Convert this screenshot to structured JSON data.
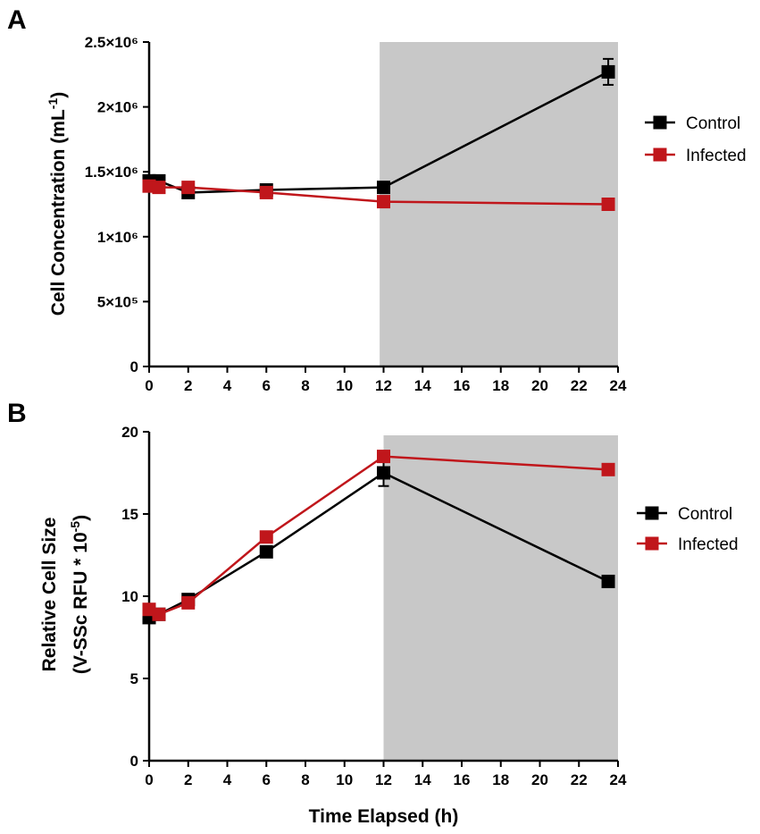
{
  "chart_data": [
    {
      "type": "line",
      "panel_label": "A",
      "ylabel": "Cell Concentration (mL",
      "ylabel_sup": "-1",
      "ylabel_tail": ")",
      "xlabel": "",
      "xlim": [
        0,
        24
      ],
      "ylim": [
        0,
        2500000
      ],
      "x_ticks": [
        0,
        2,
        4,
        6,
        8,
        10,
        12,
        14,
        16,
        18,
        20,
        22,
        24
      ],
      "x_tick_labels": [
        "0",
        "2",
        "4",
        "6",
        "8",
        "10",
        "12",
        "14",
        "16",
        "18",
        "20",
        "22",
        "24"
      ],
      "y_ticks": [
        0,
        500000,
        1000000,
        1500000,
        2000000,
        2500000
      ],
      "y_tick_labels": [
        "0",
        "5×10⁵",
        "1×10⁶",
        "1.5×10⁶",
        "2×10⁶",
        "2.5×10⁶"
      ],
      "shaded_region": [
        11.8,
        24
      ],
      "series": [
        {
          "name": "Control",
          "color": "#000000",
          "x": [
            0,
            0.5,
            2,
            6,
            12,
            23.5
          ],
          "y": [
            1430000,
            1430000,
            1340000,
            1360000,
            1380000,
            2270000
          ],
          "err": [
            0,
            0,
            0,
            0,
            0,
            100000
          ]
        },
        {
          "name": "Infected",
          "color": "#c0161b",
          "x": [
            0,
            0.5,
            2,
            6,
            12,
            23.5
          ],
          "y": [
            1390000,
            1380000,
            1380000,
            1340000,
            1270000,
            1250000
          ],
          "err": [
            0,
            0,
            0,
            0,
            0,
            0
          ]
        }
      ]
    },
    {
      "type": "line",
      "panel_label": "B",
      "ylabel": "Relative Cell Size",
      "ylabel2": "(V-SSc RFU * 10",
      "ylabel2_sup": "-5",
      "ylabel2_tail": ")",
      "xlabel": "Time Elapsed (h)",
      "xlim": [
        0,
        24
      ],
      "ylim": [
        0,
        20
      ],
      "x_ticks": [
        0,
        2,
        4,
        6,
        8,
        10,
        12,
        14,
        16,
        18,
        20,
        22,
        24
      ],
      "x_tick_labels": [
        "0",
        "2",
        "4",
        "6",
        "8",
        "10",
        "12",
        "14",
        "16",
        "18",
        "20",
        "22",
        "24"
      ],
      "y_ticks": [
        0,
        5,
        10,
        15,
        20
      ],
      "y_tick_labels": [
        "0",
        "5",
        "10",
        "15",
        "20"
      ],
      "shaded_region": [
        12,
        24
      ],
      "series": [
        {
          "name": "Control",
          "color": "#000000",
          "x": [
            0,
            0.5,
            2,
            6,
            12,
            23.5
          ],
          "y": [
            8.7,
            8.9,
            9.8,
            12.7,
            17.5,
            10.9
          ],
          "err": [
            0,
            0,
            0,
            0,
            0.8,
            0
          ]
        },
        {
          "name": "Infected",
          "color": "#c0161b",
          "x": [
            0,
            0.5,
            2,
            6,
            12,
            23.5
          ],
          "y": [
            9.2,
            8.9,
            9.6,
            13.6,
            18.5,
            17.7
          ],
          "err": [
            0,
            0,
            0,
            0,
            0.3,
            0
          ]
        }
      ]
    }
  ]
}
